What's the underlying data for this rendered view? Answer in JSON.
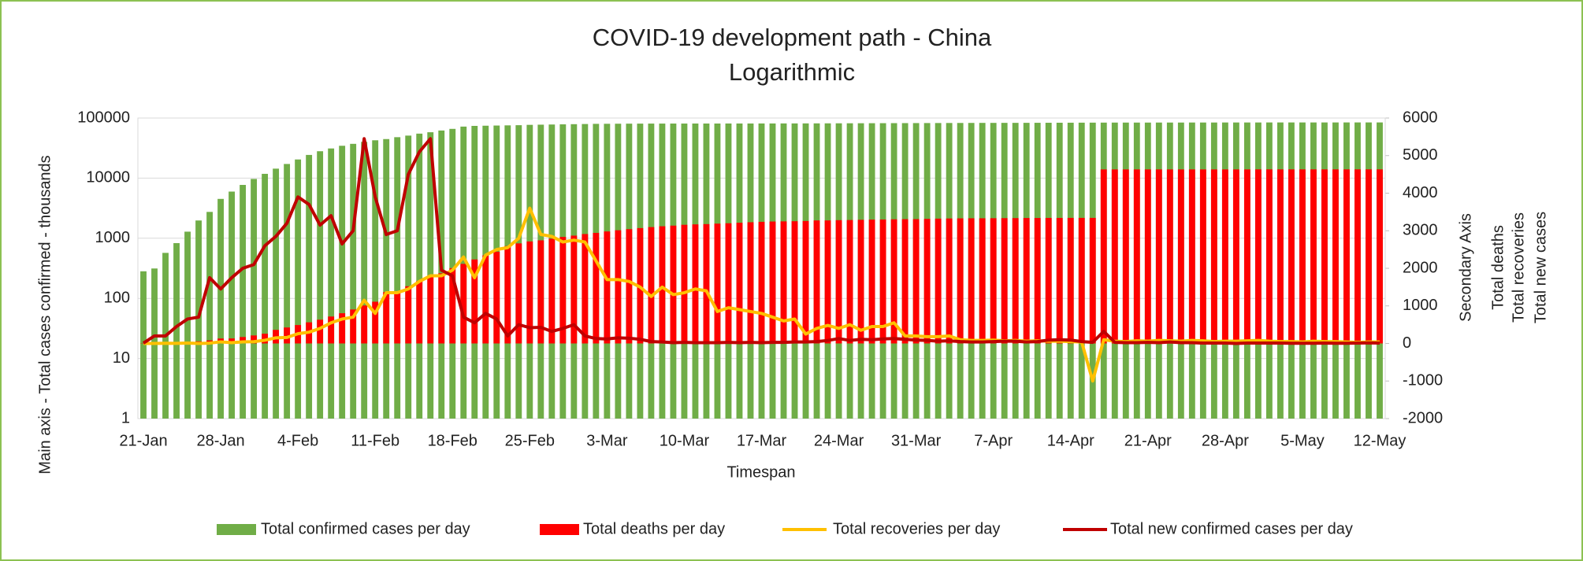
{
  "chart_data": {
    "type": "combo",
    "title": "COVID-19 development path - China",
    "subtitle": "Logarithmic",
    "xlabel": "Timespan",
    "ylabel": "Main axis  - Total cases confirmed - thousands",
    "y2label": [
      "Secondary Axis",
      "Total deaths",
      "Total recoveries",
      "Total new cases"
    ],
    "categories": [
      "21-Jan",
      null,
      null,
      null,
      null,
      null,
      null,
      "28-Jan",
      null,
      null,
      null,
      null,
      null,
      null,
      "4-Feb",
      null,
      null,
      null,
      null,
      null,
      null,
      "11-Feb",
      null,
      null,
      null,
      null,
      null,
      null,
      "18-Feb",
      null,
      null,
      null,
      null,
      null,
      null,
      "25-Feb",
      null,
      null,
      null,
      null,
      null,
      null,
      "3-Mar",
      null,
      null,
      null,
      null,
      null,
      null,
      "10-Mar",
      null,
      null,
      null,
      null,
      null,
      null,
      "17-Mar",
      null,
      null,
      null,
      null,
      null,
      null,
      "24-Mar",
      null,
      null,
      null,
      null,
      null,
      null,
      "31-Mar",
      null,
      null,
      null,
      null,
      null,
      null,
      "7-Apr",
      null,
      null,
      null,
      null,
      null,
      null,
      "14-Apr",
      null,
      null,
      null,
      null,
      null,
      null,
      "21-Apr",
      null,
      null,
      null,
      null,
      null,
      null,
      "28-Apr",
      null,
      null,
      null,
      null,
      null,
      null,
      "5-May",
      null,
      null,
      null,
      null,
      null,
      null,
      "12-May"
    ],
    "ylim": [
      1,
      100000
    ],
    "yticks": [
      1,
      10,
      100,
      1000,
      10000,
      100000
    ],
    "log_scale": true,
    "grid": true,
    "y2lim": [
      -2000,
      6000
    ],
    "y2ticks": [
      -2000,
      -1000,
      0,
      1000,
      2000,
      3000,
      4000,
      5000,
      6000
    ],
    "legend": "bottom",
    "series": [
      {
        "name": "Total confirmed cases per day",
        "type": "bar",
        "color": "#70ad47",
        "values": [
          282,
          314,
          571,
          830,
          1287,
          1975,
          2744,
          4515,
          5974,
          7711,
          9692,
          11791,
          14380,
          17205,
          20438,
          24324,
          28018,
          31161,
          34546,
          37198,
          40171,
          42638,
          44653,
          48000,
          51000,
          55000,
          58000,
          62000,
          66000,
          72000,
          74000,
          74500,
          75000,
          75500,
          76000,
          77000,
          77500,
          78000,
          78500,
          79000,
          79500,
          80000,
          80200,
          80400,
          80600,
          80700,
          80800,
          80800,
          80900,
          80900,
          81000,
          81000,
          81000,
          81100,
          81100,
          81100,
          81200,
          81200,
          81300,
          81300,
          81400,
          81500,
          81600,
          81700,
          81800,
          81900,
          82000,
          82100,
          82200,
          82300,
          82400,
          82500,
          82600,
          82700,
          82800,
          82900,
          83000,
          83000,
          83100,
          83100,
          83200,
          83300,
          83400,
          83500,
          83600,
          83700,
          83800,
          83900,
          84000,
          84000,
          84000,
          84000,
          84100,
          84100,
          84100,
          84200,
          84200,
          84200,
          84300,
          84300,
          84300,
          84300,
          84400,
          84400,
          84400,
          84400,
          84400,
          84400,
          84400,
          84450,
          84450,
          84450,
          84450
        ]
      },
      {
        "name": "Total deaths per day",
        "type": "bar",
        "axis": "y2",
        "color": "#ff0000",
        "values": [
          6,
          17,
          18,
          26,
          42,
          56,
          82,
          131,
          133,
          171,
          213,
          259,
          361,
          425,
          490,
          562,
          632,
          717,
          804,
          904,
          1011,
          1111,
          1367,
          1380,
          1523,
          1665,
          1770,
          1868,
          2004,
          2118,
          2236,
          2345,
          2442,
          2592,
          2663,
          2715,
          2744,
          2788,
          2835,
          2870,
          2912,
          2943,
          2981,
          3012,
          3042,
          3070,
          3097,
          3119,
          3136,
          3158,
          3169,
          3176,
          3189,
          3199,
          3213,
          3226,
          3237,
          3245,
          3249,
          3253,
          3259,
          3274,
          3274,
          3281,
          3285,
          3291,
          3296,
          3299,
          3304,
          3308,
          3309,
          3316,
          3322,
          3326,
          3329,
          3331,
          3331,
          3333,
          3335,
          3336,
          3339,
          3339,
          3341,
          3341,
          3342,
          3342,
          3342,
          4632,
          4632,
          4632,
          4632,
          4632,
          4632,
          4632,
          4632,
          4632,
          4632,
          4632,
          4632,
          4632,
          4632,
          4633,
          4633,
          4633,
          4633,
          4633,
          4633,
          4633,
          4633,
          4633,
          4633,
          4633,
          4633
        ]
      },
      {
        "name": "Total recoveries per day",
        "type": "line",
        "axis": "y2",
        "color": "#ffc000",
        "values": [
          0,
          0,
          6,
          3,
          11,
          0,
          9,
          43,
          21,
          43,
          47,
          85,
          150,
          160,
          260,
          300,
          400,
          550,
          650,
          700,
          1150,
          800,
          1350,
          1350,
          1450,
          1650,
          1800,
          1800,
          1950,
          2300,
          1750,
          2350,
          2500,
          2550,
          2800,
          3600,
          2900,
          2850,
          2700,
          2750,
          2700,
          2200,
          1700,
          1700,
          1650,
          1500,
          1250,
          1500,
          1300,
          1350,
          1450,
          1400,
          850,
          950,
          900,
          850,
          800,
          700,
          600,
          650,
          250,
          400,
          480,
          400,
          500,
          350,
          450,
          450,
          550,
          200,
          200,
          180,
          180,
          200,
          100,
          80,
          80,
          90,
          70,
          80,
          60,
          70,
          60,
          60,
          50,
          40,
          -1000,
          100,
          60,
          50,
          70,
          60,
          80,
          70,
          60,
          80,
          70,
          50,
          60,
          60,
          70,
          80,
          60,
          50,
          50,
          40,
          60,
          50,
          50,
          40,
          30,
          40,
          40
        ]
      },
      {
        "name": "Total new confirmed cases per day",
        "type": "line",
        "axis": "y2",
        "color": "#c00000",
        "values": [
          10,
          200,
          200,
          450,
          650,
          700,
          1750,
          1450,
          1750,
          2000,
          2100,
          2600,
          2850,
          3200,
          3900,
          3700,
          3150,
          3400,
          2650,
          3000,
          5450,
          3900,
          2900,
          3000,
          4500,
          5100,
          5450,
          1950,
          1800,
          700,
          550,
          800,
          650,
          200,
          500,
          420,
          430,
          320,
          400,
          500,
          200,
          130,
          120,
          150,
          140,
          110,
          50,
          40,
          20,
          30,
          20,
          20,
          20,
          30,
          20,
          30,
          20,
          30,
          30,
          40,
          40,
          50,
          80,
          130,
          80,
          110,
          100,
          120,
          130,
          110,
          90,
          80,
          60,
          70,
          50,
          40,
          40,
          50,
          60,
          60,
          40,
          50,
          90,
          100,
          90,
          50,
          30,
          320,
          30,
          20,
          20,
          30,
          20,
          40,
          20,
          20,
          10,
          10,
          10,
          0,
          10,
          10,
          10,
          10,
          5,
          5,
          5,
          10,
          5,
          5,
          10,
          15,
          10
        ]
      }
    ]
  }
}
